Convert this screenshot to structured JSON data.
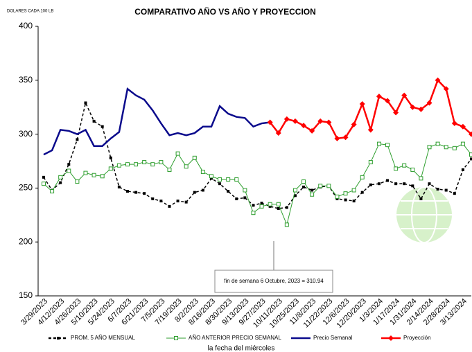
{
  "chart_data": {
    "type": "line",
    "title": "COMPARATIVO AÑO VS  AÑO Y PROYECCION",
    "y_unit_label": "DOLARES CADA 100 LB",
    "x_label": "la fecha del miércoles",
    "annotation": "fin de semana 6 Octubre, 2023 = 310.94",
    "categories": [
      "3/29/2023",
      null,
      "4/12/2023",
      null,
      "4/26/2023",
      null,
      "5/10/2023",
      null,
      "5/24/2023",
      null,
      "6/7/2023",
      null,
      "6/21/2023",
      null,
      "7/5/2023",
      null,
      "7/19/2023",
      null,
      "8/2/2023",
      null,
      "8/16/2023",
      null,
      "8/30/2023",
      null,
      "9/13/2023",
      null,
      "9/27/2023",
      null,
      "10/11/2023",
      null,
      "10/25/2023",
      null,
      "11/8/2023",
      null,
      "11/22/2023",
      null,
      "12/6/2023",
      null,
      "12/20/2023",
      null,
      "1/3/2024",
      null,
      "1/17/2024",
      null,
      "1/31/2024",
      null,
      "2/14/2024",
      null,
      "2/28/2024",
      null,
      "3/13/2024",
      null
    ],
    "ylim": [
      150,
      400
    ],
    "yticks": [
      150,
      200,
      250,
      300,
      350,
      400
    ],
    "legend": "bottom",
    "series": [
      {
        "name": "PROM. 5 AÑO MENSUAL",
        "color": "#000000",
        "dash": true,
        "marker": "square-filled",
        "values": [
          260,
          248,
          255,
          272,
          295,
          329,
          312,
          307,
          278,
          251,
          247,
          246,
          245,
          240,
          238,
          233,
          238,
          237,
          246,
          248,
          259,
          254,
          247,
          240,
          241,
          234,
          236,
          233,
          231,
          232,
          243,
          251,
          248,
          251,
          252,
          240,
          239,
          238,
          246,
          253,
          254,
          257,
          254,
          254,
          252,
          240,
          254,
          249,
          248,
          245,
          267,
          277
        ]
      },
      {
        "name": "AÑO ANTERIOR PRECIO SEMANAL",
        "color": "#2e9e2e",
        "dash": false,
        "marker": "square-open",
        "values": [
          254,
          247,
          260,
          266,
          256,
          264,
          262,
          261,
          268,
          271,
          272,
          272,
          274,
          272,
          274,
          267,
          282,
          270,
          278,
          265,
          261,
          258,
          258,
          258,
          248,
          227,
          233,
          235,
          235,
          216,
          248,
          256,
          244,
          252,
          252,
          242,
          245,
          248,
          260,
          274,
          291,
          290,
          268,
          271,
          267,
          259,
          288,
          291,
          288,
          287,
          291,
          281
        ]
      },
      {
        "name": "Precio Semanal",
        "color": "#0a0a8c",
        "dash": false,
        "marker": "none",
        "values": [
          281,
          285,
          304,
          303,
          300,
          304,
          289,
          289,
          296,
          302,
          342,
          336,
          332,
          322,
          310,
          299,
          301,
          299,
          301,
          307,
          307,
          326,
          319,
          316,
          315,
          307,
          310,
          311,
          null,
          null,
          null,
          null,
          null,
          null,
          null,
          null,
          null,
          null,
          null,
          null,
          null,
          null,
          null,
          null,
          null,
          null,
          null,
          null,
          null,
          null,
          null,
          null
        ]
      },
      {
        "name": "Proyección",
        "color": "#ff0000",
        "dash": false,
        "marker": "diamond",
        "values": [
          null,
          null,
          null,
          null,
          null,
          null,
          null,
          null,
          null,
          null,
          null,
          null,
          null,
          null,
          null,
          null,
          null,
          null,
          null,
          null,
          null,
          null,
          null,
          null,
          null,
          null,
          null,
          311,
          301,
          314,
          312,
          308,
          303,
          312,
          311,
          296,
          297,
          309,
          328,
          304,
          335,
          331,
          320,
          336,
          325,
          323,
          329,
          350,
          342,
          310,
          307,
          300
        ]
      }
    ]
  }
}
